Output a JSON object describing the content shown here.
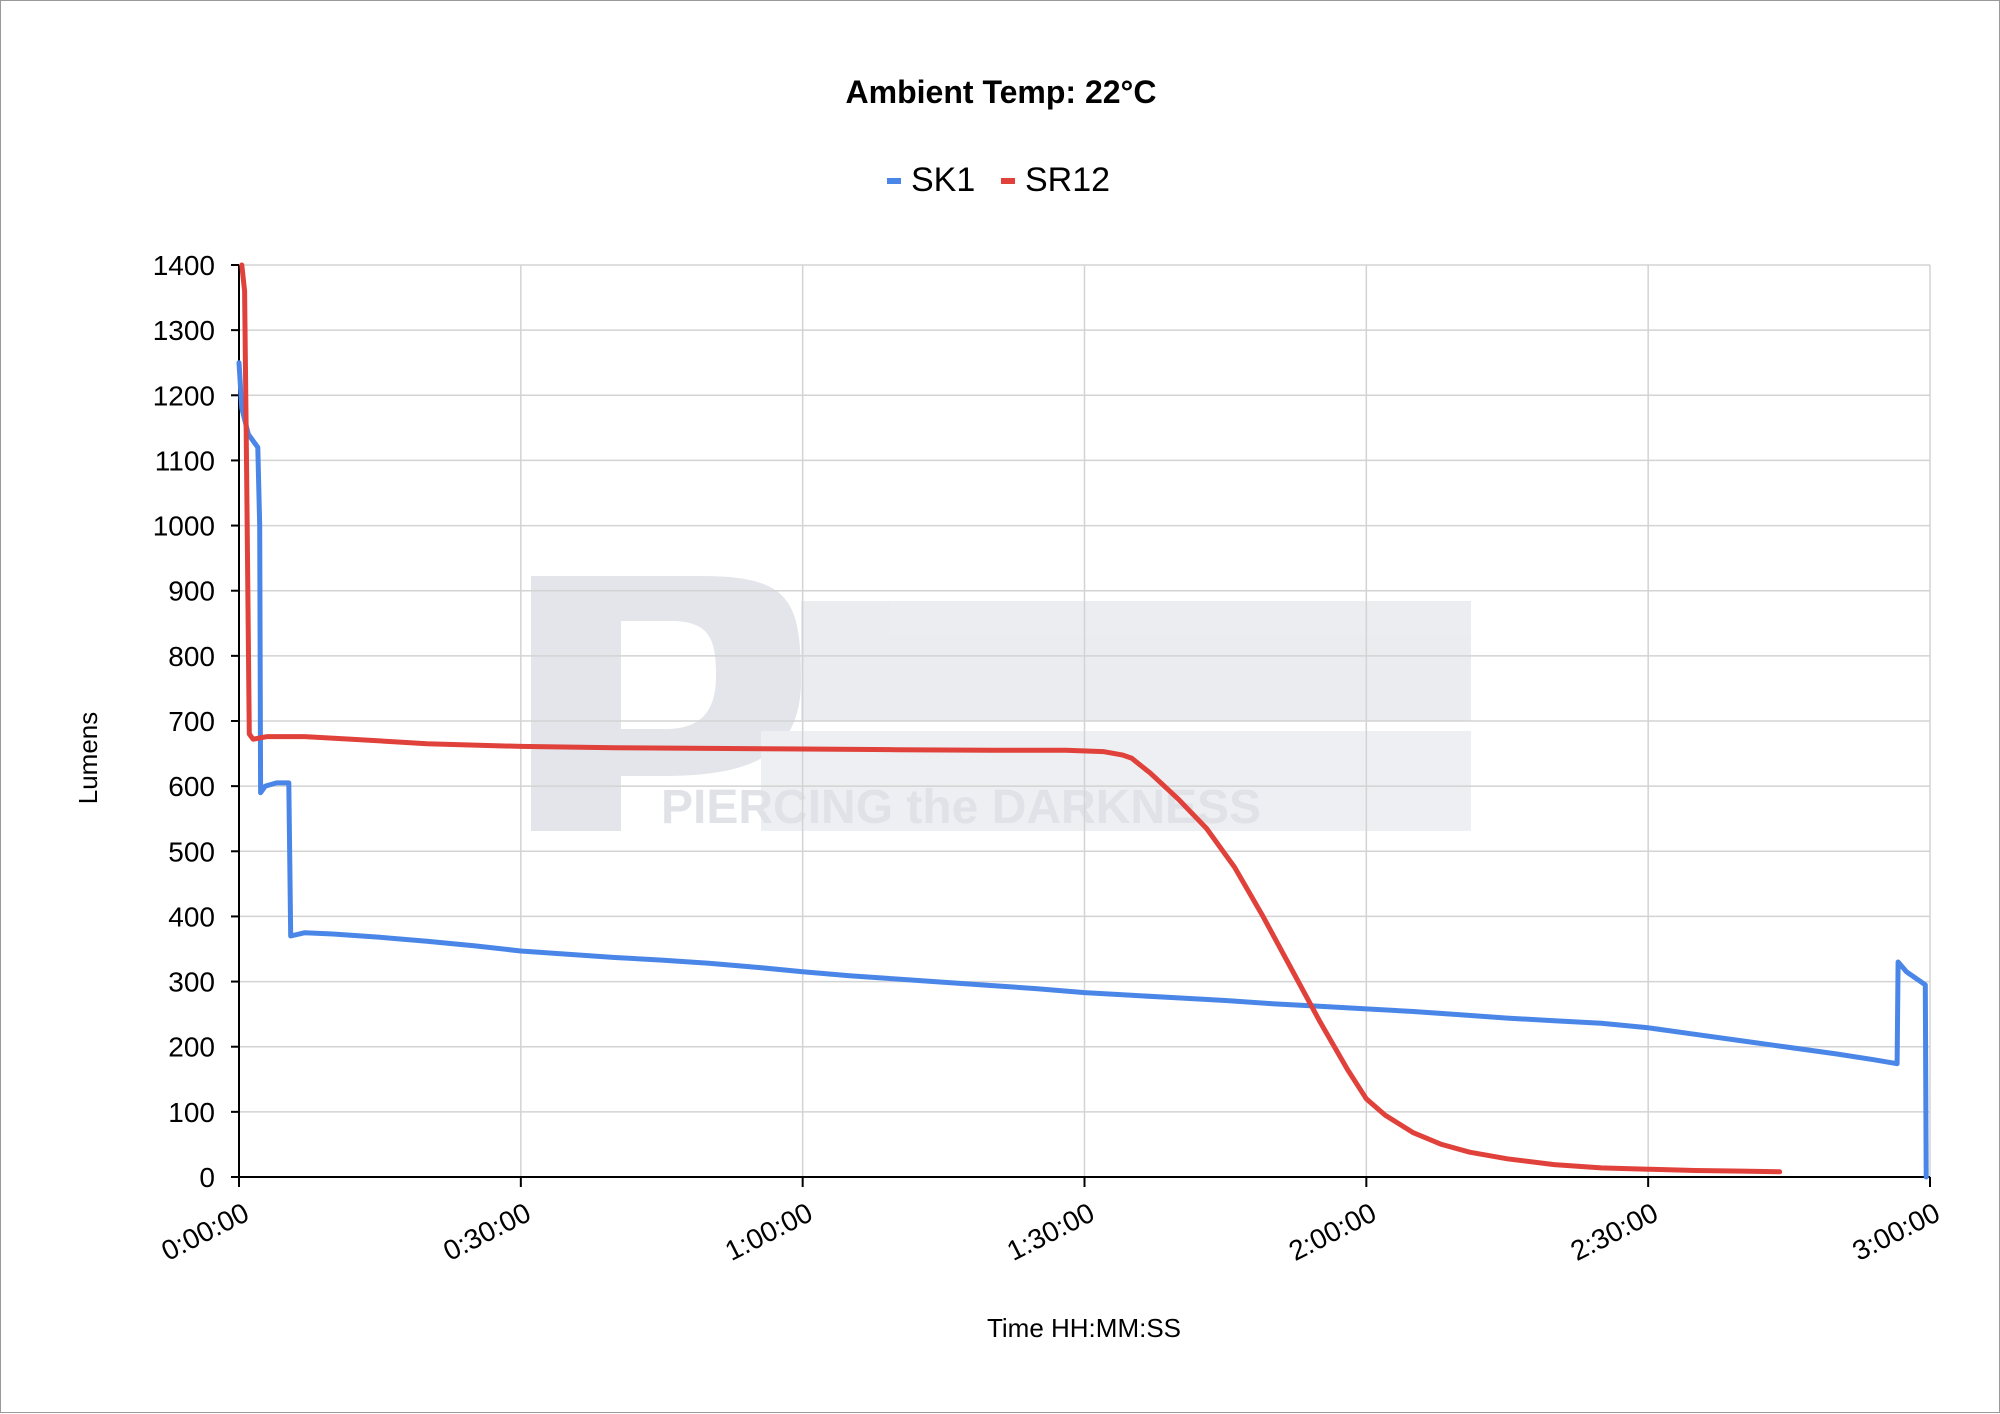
{
  "chart_data": {
    "type": "line",
    "title": "Ambient Temp: 22°C",
    "xlabel": "Time HH:MM:SS",
    "ylabel": "Lumens",
    "x_unit": "minutes",
    "xlim": [
      0,
      180
    ],
    "ylim": [
      0,
      1400
    ],
    "y_ticks": [
      0,
      100,
      200,
      300,
      400,
      500,
      600,
      700,
      800,
      900,
      1000,
      1100,
      1200,
      1300,
      1400
    ],
    "x_ticks": [
      {
        "value": 0,
        "label": "0:00:00"
      },
      {
        "value": 30,
        "label": "0:30:00"
      },
      {
        "value": 60,
        "label": "1:00:00"
      },
      {
        "value": 90,
        "label": "1:30:00"
      },
      {
        "value": 120,
        "label": "2:00:00"
      },
      {
        "value": 150,
        "label": "2:30:00"
      },
      {
        "value": 180,
        "label": "3:00:00"
      }
    ],
    "grid": true,
    "legend_position": "top-center",
    "watermark": "PIERCING the DARKNESS",
    "series": [
      {
        "name": "SK1",
        "color": "#4a86e8",
        "points": [
          [
            0,
            1250
          ],
          [
            0.3,
            1180
          ],
          [
            1,
            1140
          ],
          [
            2,
            1120
          ],
          [
            2.2,
            1000
          ],
          [
            2.3,
            590
          ],
          [
            2.8,
            600
          ],
          [
            4,
            605
          ],
          [
            5.3,
            605
          ],
          [
            5.5,
            370
          ],
          [
            7,
            375
          ],
          [
            10,
            373
          ],
          [
            15,
            368
          ],
          [
            20,
            362
          ],
          [
            25,
            355
          ],
          [
            30,
            347
          ],
          [
            35,
            342
          ],
          [
            40,
            337
          ],
          [
            45,
            333
          ],
          [
            50,
            328
          ],
          [
            55,
            322
          ],
          [
            60,
            315
          ],
          [
            65,
            309
          ],
          [
            70,
            304
          ],
          [
            75,
            299
          ],
          [
            80,
            294
          ],
          [
            85,
            289
          ],
          [
            90,
            283
          ],
          [
            95,
            279
          ],
          [
            100,
            275
          ],
          [
            105,
            271
          ],
          [
            110,
            266
          ],
          [
            115,
            262
          ],
          [
            120,
            258
          ],
          [
            125,
            254
          ],
          [
            130,
            249
          ],
          [
            135,
            244
          ],
          [
            140,
            240
          ],
          [
            145,
            236
          ],
          [
            150,
            229
          ],
          [
            155,
            219
          ],
          [
            160,
            209
          ],
          [
            165,
            199
          ],
          [
            170,
            189
          ],
          [
            174,
            180
          ],
          [
            176.5,
            174
          ],
          [
            176.6,
            330
          ],
          [
            177.5,
            315
          ],
          [
            179,
            300
          ],
          [
            179.5,
            295
          ],
          [
            179.6,
            0
          ]
        ]
      },
      {
        "name": "SR12",
        "color": "#e0413a",
        "points": [
          [
            0.3,
            1400
          ],
          [
            0.6,
            1360
          ],
          [
            0.8,
            1100
          ],
          [
            1.1,
            680
          ],
          [
            1.5,
            672
          ],
          [
            3,
            676
          ],
          [
            7,
            676
          ],
          [
            12,
            672
          ],
          [
            20,
            665
          ],
          [
            30,
            661
          ],
          [
            40,
            659
          ],
          [
            50,
            658
          ],
          [
            60,
            657
          ],
          [
            70,
            656
          ],
          [
            80,
            655
          ],
          [
            88,
            655
          ],
          [
            92,
            653
          ],
          [
            94,
            648
          ],
          [
            95,
            643
          ],
          [
            97,
            620
          ],
          [
            100,
            580
          ],
          [
            103,
            535
          ],
          [
            106,
            475
          ],
          [
            109,
            400
          ],
          [
            112,
            320
          ],
          [
            115,
            240
          ],
          [
            118,
            165
          ],
          [
            120,
            120
          ],
          [
            122,
            95
          ],
          [
            125,
            68
          ],
          [
            128,
            50
          ],
          [
            131,
            38
          ],
          [
            135,
            28
          ],
          [
            140,
            19
          ],
          [
            145,
            14
          ],
          [
            150,
            12
          ],
          [
            155,
            10
          ],
          [
            160,
            9
          ],
          [
            164,
            8
          ]
        ]
      }
    ]
  }
}
